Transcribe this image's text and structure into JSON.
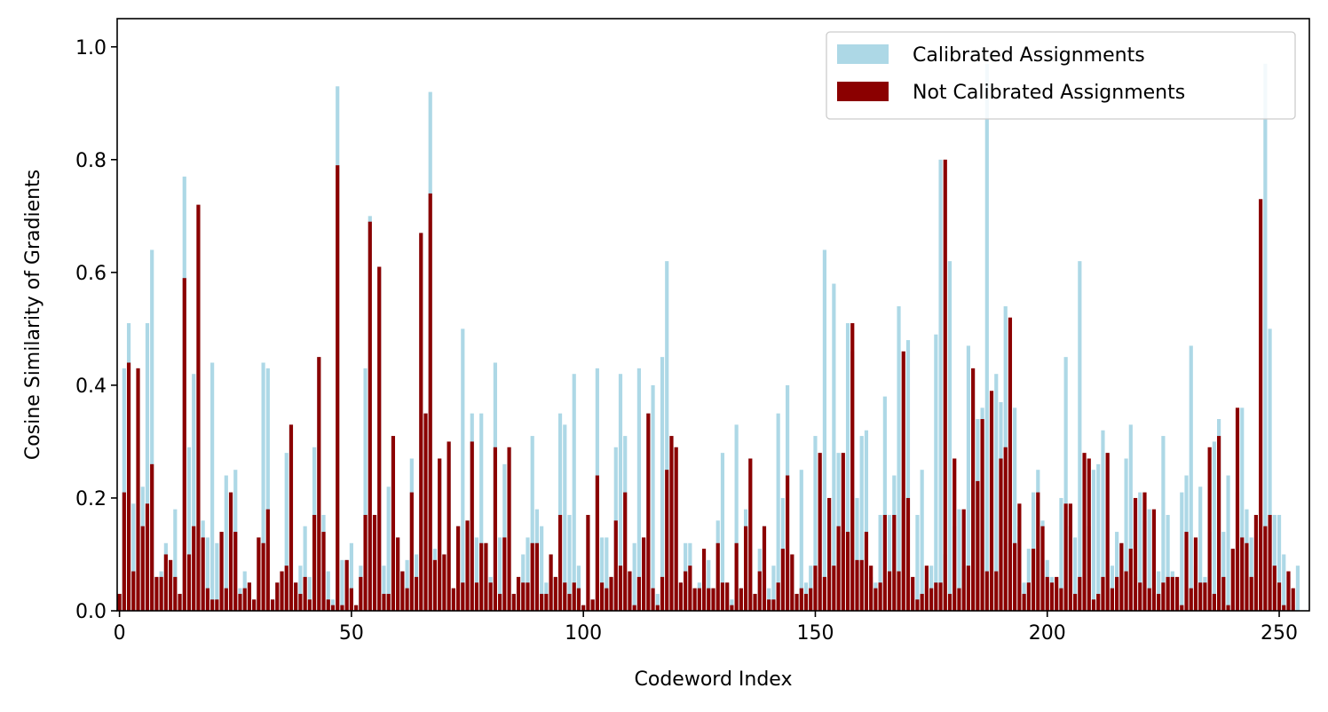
{
  "chart_data": {
    "type": "bar",
    "xlabel": "Codeword Index",
    "ylabel": "Cosine Similarity of Gradients",
    "xlim": [
      -0.5,
      256.5
    ],
    "ylim": [
      0.0,
      1.05
    ],
    "xticks": [
      0,
      50,
      100,
      150,
      200,
      250
    ],
    "xtick_labels": [
      "0",
      "50",
      "100",
      "150",
      "200",
      "250"
    ],
    "yticks": [
      0.0,
      0.2,
      0.4,
      0.6,
      0.8,
      1.0
    ],
    "ytick_labels": [
      "0.0",
      "0.2",
      "0.4",
      "0.6",
      "0.8",
      "1.0"
    ],
    "grid": false,
    "legend_position": "top-right",
    "series": [
      {
        "name": "Calibrated Assignments",
        "color": "#add8e6",
        "values": [
          0.03,
          0.43,
          0.51,
          0.19,
          0.43,
          0.22,
          0.51,
          0.64,
          0.06,
          0.07,
          0.12,
          0.09,
          0.18,
          0.03,
          0.77,
          0.29,
          0.42,
          0.72,
          0.16,
          0.13,
          0.44,
          0.12,
          0.14,
          0.24,
          0.21,
          0.25,
          0.04,
          0.07,
          0.05,
          0.02,
          0.13,
          0.44,
          0.43,
          0.02,
          0.05,
          0.07,
          0.28,
          0.33,
          0.05,
          0.08,
          0.15,
          0.06,
          0.29,
          0.45,
          0.17,
          0.07,
          0.02,
          0.93,
          0.09,
          0.09,
          0.12,
          0.01,
          0.08,
          0.43,
          0.7,
          0.17,
          0.61,
          0.08,
          0.22,
          0.31,
          0.13,
          0.07,
          0.09,
          0.27,
          0.1,
          0.67,
          0.35,
          0.92,
          0.11,
          0.27,
          0.1,
          0.3,
          0.04,
          0.15,
          0.5,
          0.16,
          0.35,
          0.13,
          0.35,
          0.12,
          0.06,
          0.44,
          0.13,
          0.26,
          0.29,
          0.03,
          0.06,
          0.1,
          0.13,
          0.31,
          0.18,
          0.15,
          0.05,
          0.1,
          0.06,
          0.35,
          0.33,
          0.17,
          0.42,
          0.08,
          0.01,
          0.17,
          0.02,
          0.43,
          0.13,
          0.13,
          0.06,
          0.29,
          0.42,
          0.31,
          0.07,
          0.12,
          0.43,
          0.13,
          0.35,
          0.4,
          0.03,
          0.45,
          0.62,
          0.31,
          0.29,
          0.05,
          0.12,
          0.12,
          0.04,
          0.05,
          0.07,
          0.09,
          0.04,
          0.16,
          0.28,
          0.05,
          0.02,
          0.33,
          0.04,
          0.18,
          0.27,
          0.03,
          0.11,
          0.15,
          0.04,
          0.08,
          0.35,
          0.2,
          0.4,
          0.1,
          0.03,
          0.25,
          0.05,
          0.08,
          0.31,
          0.06,
          0.64,
          0.08,
          0.58,
          0.28,
          0.14,
          0.51,
          0.46,
          0.2,
          0.31,
          0.32,
          0.06,
          0.05,
          0.17,
          0.38,
          0.17,
          0.24,
          0.54,
          0.2,
          0.48,
          0.02,
          0.17,
          0.25,
          0.04,
          0.08,
          0.49,
          0.8,
          0.1,
          0.62,
          0.15,
          0.18,
          0.08,
          0.47,
          0.23,
          0.34,
          0.36,
          0.97,
          0.07,
          0.42,
          0.37,
          0.54,
          0.12,
          0.36,
          0.15,
          0.05,
          0.11,
          0.21,
          0.25,
          0.16,
          0.09,
          0.06,
          0.04,
          0.2,
          0.45,
          0.15,
          0.13,
          0.62,
          0.27,
          0.15,
          0.25,
          0.26,
          0.32,
          0.28,
          0.08,
          0.14,
          0.12,
          0.27,
          0.33,
          0.06,
          0.21,
          0.16,
          0.18,
          0.03,
          0.07,
          0.31,
          0.17,
          0.07,
          0.01,
          0.21,
          0.24,
          0.47,
          0.08,
          0.22,
          0.06,
          0.14,
          0.3,
          0.34,
          0.14,
          0.24,
          0.01,
          0.21,
          0.36,
          0.18,
          0.13,
          0.13,
          0.17,
          0.97,
          0.5,
          0.17,
          0.17,
          0.1,
          0.06,
          0.01,
          0.08
        ]
      },
      {
        "name": "Not Calibrated Assignments",
        "color": "#8b0000",
        "values": [
          0.03,
          0.21,
          0.44,
          0.07,
          0.43,
          0.15,
          0.19,
          0.26,
          0.06,
          0.06,
          0.1,
          0.09,
          0.06,
          0.03,
          0.59,
          0.1,
          0.15,
          0.72,
          0.13,
          0.04,
          0.02,
          0.02,
          0.14,
          0.04,
          0.21,
          0.14,
          0.03,
          0.04,
          0.05,
          0.02,
          0.13,
          0.12,
          0.18,
          0.02,
          0.05,
          0.07,
          0.08,
          0.33,
          0.05,
          0.03,
          0.06,
          0.02,
          0.17,
          0.45,
          0.14,
          0.02,
          0.01,
          0.79,
          0.01,
          0.09,
          0.04,
          0.01,
          0.06,
          0.17,
          0.69,
          0.17,
          0.61,
          0.03,
          0.03,
          0.31,
          0.13,
          0.07,
          0.04,
          0.21,
          0.06,
          0.67,
          0.35,
          0.74,
          0.09,
          0.27,
          0.1,
          0.3,
          0.04,
          0.15,
          0.05,
          0.16,
          0.3,
          0.05,
          0.12,
          0.12,
          0.05,
          0.29,
          0.03,
          0.13,
          0.29,
          0.03,
          0.06,
          0.05,
          0.05,
          0.12,
          0.12,
          0.03,
          0.03,
          0.1,
          0.06,
          0.17,
          0.05,
          0.03,
          0.05,
          0.04,
          0.01,
          0.17,
          0.02,
          0.24,
          0.05,
          0.04,
          0.06,
          0.16,
          0.08,
          0.21,
          0.07,
          0.01,
          0.06,
          0.13,
          0.35,
          0.04,
          0.01,
          0.06,
          0.25,
          0.31,
          0.29,
          0.05,
          0.07,
          0.08,
          0.04,
          0.04,
          0.11,
          0.04,
          0.04,
          0.12,
          0.05,
          0.05,
          0.01,
          0.12,
          0.04,
          0.15,
          0.27,
          0.03,
          0.07,
          0.15,
          0.02,
          0.02,
          0.05,
          0.11,
          0.24,
          0.1,
          0.03,
          0.04,
          0.03,
          0.04,
          0.08,
          0.28,
          0.06,
          0.2,
          0.08,
          0.15,
          0.28,
          0.14,
          0.51,
          0.09,
          0.09,
          0.14,
          0.08,
          0.04,
          0.05,
          0.17,
          0.07,
          0.17,
          0.07,
          0.46,
          0.2,
          0.06,
          0.02,
          0.03,
          0.08,
          0.04,
          0.05,
          0.05,
          0.8,
          0.03,
          0.27,
          0.04,
          0.18,
          0.08,
          0.43,
          0.23,
          0.34,
          0.07,
          0.39,
          0.07,
          0.27,
          0.29,
          0.52,
          0.12,
          0.19,
          0.03,
          0.05,
          0.11,
          0.21,
          0.15,
          0.06,
          0.05,
          0.06,
          0.04,
          0.19,
          0.19,
          0.03,
          0.06,
          0.28,
          0.27,
          0.02,
          0.03,
          0.06,
          0.28,
          0.04,
          0.06,
          0.12,
          0.07,
          0.11,
          0.2,
          0.05,
          0.21,
          0.04,
          0.18,
          0.03,
          0.05,
          0.06,
          0.06,
          0.06,
          0.01,
          0.14,
          0.04,
          0.13,
          0.05,
          0.05,
          0.29,
          0.03,
          0.31,
          0.06,
          0.01,
          0.11,
          0.36,
          0.13,
          0.12,
          0.06,
          0.17,
          0.73,
          0.15,
          0.17,
          0.08,
          0.05,
          0.01,
          0.07,
          0.04
        ]
      }
    ]
  }
}
